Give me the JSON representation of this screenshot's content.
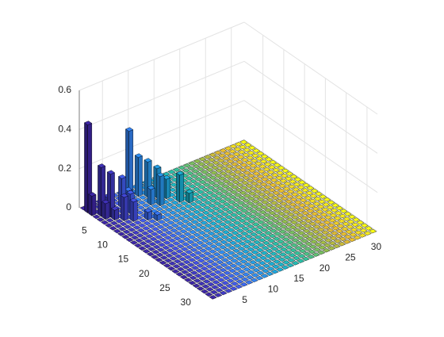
{
  "chart_data": {
    "type": "bar3",
    "values": [
      [
        0,
        0,
        0,
        0,
        0,
        0,
        0,
        0,
        0,
        0,
        0,
        0,
        0,
        0,
        0,
        0,
        0,
        0,
        0,
        0,
        0,
        0,
        0,
        0,
        0,
        0,
        0,
        0,
        0,
        0,
        0,
        0
      ],
      [
        0.45,
        0,
        0,
        0,
        0,
        0,
        0,
        0,
        0.33,
        0,
        0,
        0,
        0,
        0,
        0,
        0,
        0,
        0,
        0,
        0,
        0,
        0,
        0,
        0,
        0,
        0,
        0,
        0,
        0,
        0,
        0,
        0
      ],
      [
        0.1,
        0,
        0,
        0.06,
        0,
        0,
        0,
        0.05,
        0,
        0.2,
        0,
        0,
        0,
        0,
        0,
        0,
        0,
        0,
        0,
        0,
        0,
        0,
        0,
        0,
        0,
        0,
        0,
        0,
        0,
        0,
        0,
        0
      ],
      [
        0,
        0.25,
        0,
        0,
        0,
        0.15,
        0,
        0,
        0,
        0,
        0.18,
        0,
        0,
        0,
        0,
        0,
        0,
        0,
        0,
        0,
        0,
        0,
        0,
        0,
        0,
        0,
        0,
        0,
        0,
        0,
        0,
        0
      ],
      [
        0,
        0.08,
        0.22,
        0,
        0,
        0,
        0,
        0,
        0,
        0,
        0,
        0.15,
        0,
        0,
        0,
        0,
        0,
        0,
        0,
        0,
        0,
        0,
        0,
        0,
        0,
        0,
        0,
        0,
        0,
        0,
        0,
        0
      ],
      [
        0,
        0,
        0.05,
        0,
        0,
        0.1,
        0,
        0,
        0,
        0.08,
        0,
        0,
        0.1,
        0,
        0,
        0,
        0,
        0,
        0,
        0,
        0,
        0,
        0,
        0,
        0,
        0,
        0,
        0,
        0,
        0,
        0,
        0
      ],
      [
        0,
        0,
        0,
        0.12,
        0,
        0,
        0,
        0,
        0,
        0,
        0.15,
        0,
        0,
        0,
        0,
        0,
        0,
        0,
        0,
        0,
        0,
        0,
        0,
        0,
        0,
        0,
        0,
        0,
        0,
        0,
        0,
        0
      ],
      [
        0,
        0,
        0,
        0,
        0.1,
        0,
        0,
        0,
        0,
        0,
        0,
        0,
        0,
        0.14,
        0,
        0,
        0,
        0,
        0,
        0,
        0,
        0,
        0,
        0,
        0,
        0,
        0,
        0,
        0,
        0,
        0,
        0
      ],
      [
        0,
        0,
        0,
        0,
        0,
        0,
        0.04,
        0,
        0,
        0,
        0,
        0,
        0,
        0,
        0.05,
        0,
        0,
        0,
        0,
        0,
        0,
        0,
        0,
        0,
        0,
        0,
        0,
        0,
        0,
        0,
        0,
        0
      ],
      [
        0,
        0,
        0,
        0,
        0,
        0,
        0,
        0.03,
        0,
        0,
        0,
        0,
        0,
        0,
        0,
        0,
        0,
        0,
        0,
        0,
        0,
        0,
        0,
        0,
        0,
        0,
        0,
        0,
        0,
        0,
        0,
        0
      ],
      [
        0,
        0,
        0,
        0,
        0,
        0,
        0,
        0,
        0,
        0,
        0,
        0,
        0,
        0,
        0,
        0,
        0,
        0,
        0,
        0,
        0,
        0,
        0,
        0,
        0,
        0,
        0,
        0,
        0,
        0,
        0,
        0
      ],
      [
        0,
        0,
        0,
        0,
        0,
        0,
        0,
        0,
        0,
        0,
        0,
        0,
        0,
        0,
        0,
        0,
        0,
        0,
        0,
        0,
        0,
        0,
        0,
        0,
        0,
        0,
        0,
        0,
        0,
        0,
        0,
        0
      ],
      [
        0,
        0,
        0,
        0,
        0,
        0,
        0,
        0,
        0,
        0,
        0,
        0,
        0,
        0,
        0,
        0,
        0,
        0,
        0,
        0,
        0,
        0,
        0,
        0,
        0,
        0,
        0,
        0,
        0,
        0,
        0,
        0
      ],
      [
        0,
        0,
        0,
        0,
        0,
        0,
        0,
        0,
        0,
        0,
        0,
        0,
        0,
        0,
        0,
        0,
        0,
        0,
        0,
        0,
        0,
        0,
        0,
        0,
        0,
        0,
        0,
        0,
        0,
        0,
        0,
        0
      ],
      [
        0,
        0,
        0,
        0,
        0,
        0,
        0,
        0,
        0,
        0,
        0,
        0,
        0,
        0,
        0,
        0,
        0,
        0,
        0,
        0,
        0,
        0,
        0,
        0,
        0,
        0,
        0,
        0,
        0,
        0,
        0,
        0
      ],
      [
        0,
        0,
        0,
        0,
        0,
        0,
        0,
        0,
        0,
        0,
        0,
        0,
        0,
        0,
        0,
        0,
        0,
        0,
        0,
        0,
        0,
        0,
        0,
        0,
        0,
        0,
        0,
        0,
        0,
        0,
        0,
        0
      ],
      [
        0,
        0,
        0,
        0,
        0,
        0,
        0,
        0,
        0,
        0,
        0,
        0,
        0,
        0,
        0,
        0,
        0,
        0,
        0,
        0,
        0,
        0,
        0,
        0,
        0,
        0,
        0,
        0,
        0,
        0,
        0,
        0
      ],
      [
        0,
        0,
        0,
        0,
        0,
        0,
        0,
        0,
        0,
        0,
        0,
        0,
        0,
        0,
        0,
        0,
        0,
        0,
        0,
        0,
        0,
        0,
        0,
        0,
        0,
        0,
        0,
        0,
        0,
        0,
        0,
        0
      ],
      [
        0,
        0,
        0,
        0,
        0,
        0,
        0,
        0,
        0,
        0,
        0,
        0,
        0,
        0,
        0,
        0,
        0,
        0,
        0,
        0,
        0,
        0,
        0,
        0,
        0,
        0,
        0,
        0,
        0,
        0,
        0,
        0
      ],
      [
        0,
        0,
        0,
        0,
        0,
        0,
        0,
        0,
        0,
        0,
        0,
        0,
        0,
        0,
        0,
        0,
        0,
        0,
        0,
        0,
        0,
        0,
        0,
        0,
        0,
        0,
        0,
        0,
        0,
        0,
        0,
        0
      ],
      [
        0,
        0,
        0,
        0,
        0,
        0,
        0,
        0,
        0,
        0,
        0,
        0,
        0,
        0,
        0,
        0,
        0,
        0,
        0,
        0,
        0,
        0,
        0,
        0,
        0,
        0,
        0,
        0,
        0,
        0,
        0,
        0
      ],
      [
        0,
        0,
        0,
        0,
        0,
        0,
        0,
        0,
        0,
        0,
        0,
        0,
        0,
        0,
        0,
        0,
        0,
        0,
        0,
        0,
        0,
        0,
        0,
        0,
        0,
        0,
        0,
        0,
        0,
        0,
        0,
        0
      ],
      [
        0,
        0,
        0,
        0,
        0,
        0,
        0,
        0,
        0,
        0,
        0,
        0,
        0,
        0,
        0,
        0,
        0,
        0,
        0,
        0,
        0,
        0,
        0,
        0,
        0,
        0,
        0,
        0,
        0,
        0,
        0,
        0
      ],
      [
        0,
        0,
        0,
        0,
        0,
        0,
        0,
        0,
        0,
        0,
        0,
        0,
        0,
        0,
        0,
        0,
        0,
        0,
        0,
        0,
        0,
        0,
        0,
        0,
        0,
        0,
        0,
        0,
        0,
        0,
        0,
        0
      ],
      [
        0,
        0,
        0,
        0,
        0,
        0,
        0,
        0,
        0,
        0,
        0,
        0,
        0,
        0,
        0,
        0,
        0,
        0,
        0,
        0,
        0,
        0,
        0,
        0,
        0,
        0,
        0,
        0,
        0,
        0,
        0,
        0
      ],
      [
        0,
        0,
        0,
        0,
        0,
        0,
        0,
        0,
        0,
        0,
        0,
        0,
        0,
        0,
        0,
        0,
        0,
        0,
        0,
        0,
        0,
        0,
        0,
        0,
        0,
        0,
        0,
        0,
        0,
        0,
        0,
        0
      ],
      [
        0,
        0,
        0,
        0,
        0,
        0,
        0,
        0,
        0,
        0,
        0,
        0,
        0,
        0,
        0,
        0,
        0,
        0,
        0,
        0,
        0,
        0,
        0,
        0,
        0,
        0,
        0,
        0,
        0,
        0,
        0,
        0
      ],
      [
        0,
        0,
        0,
        0,
        0,
        0,
        0,
        0,
        0,
        0,
        0,
        0,
        0,
        0,
        0,
        0,
        0,
        0,
        0,
        0,
        0,
        0,
        0,
        0,
        0,
        0,
        0,
        0,
        0,
        0,
        0,
        0
      ],
      [
        0,
        0,
        0,
        0,
        0,
        0,
        0,
        0,
        0,
        0,
        0,
        0,
        0,
        0,
        0,
        0,
        0,
        0,
        0,
        0,
        0,
        0,
        0,
        0,
        0,
        0,
        0,
        0,
        0,
        0,
        0,
        0
      ],
      [
        0,
        0,
        0,
        0,
        0,
        0,
        0,
        0,
        0,
        0,
        0,
        0,
        0,
        0,
        0,
        0,
        0,
        0,
        0,
        0,
        0,
        0,
        0,
        0,
        0,
        0,
        0,
        0,
        0,
        0,
        0,
        0
      ],
      [
        0,
        0,
        0,
        0,
        0,
        0,
        0,
        0,
        0,
        0,
        0,
        0,
        0,
        0,
        0,
        0,
        0,
        0,
        0,
        0,
        0,
        0,
        0,
        0,
        0,
        0,
        0,
        0,
        0,
        0,
        0,
        0
      ],
      [
        0,
        0,
        0,
        0,
        0,
        0,
        0,
        0,
        0,
        0,
        0,
        0,
        0,
        0,
        0,
        0,
        0,
        0,
        0,
        0,
        0,
        0,
        0,
        0,
        0,
        0,
        0,
        0,
        0,
        0,
        0,
        0
      ]
    ],
    "colormap": [
      "#3e26a8",
      "#4455ec",
      "#2f8ef6",
      "#19b2d5",
      "#2dc4a0",
      "#94bf4b",
      "#eaba30",
      "#f9fb15"
    ],
    "xlim": [
      0.5,
      32.5
    ],
    "xticks": [
      5,
      10,
      15,
      20,
      25,
      30
    ],
    "ylim": [
      0.5,
      32.5
    ],
    "yticks": [
      5,
      10,
      15,
      20,
      25,
      30
    ],
    "zlim": [
      0,
      0.6
    ],
    "zticks": [
      0,
      0.2,
      0.4,
      0.6
    ],
    "grid": true
  }
}
